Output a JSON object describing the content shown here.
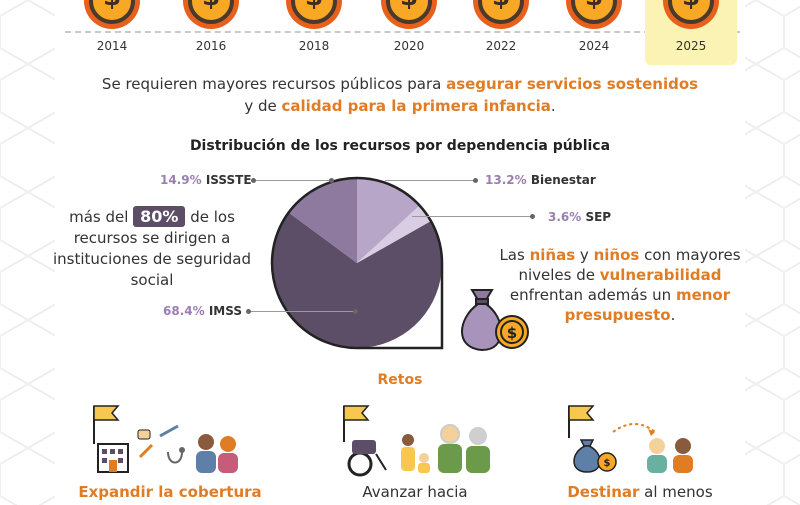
{
  "timeline": {
    "coin_symbol": "$",
    "years": [
      "2014",
      "2016",
      "2018",
      "2020",
      "2022",
      "2024",
      "2025"
    ],
    "highlighted_year": "2025"
  },
  "intro": {
    "line1_pre": "Se requieren mayores recursos públicos para ",
    "line1_em": "asegurar servicios sostenidos",
    "line2_pre": "y de ",
    "line2_em": "calidad para la primera infancia",
    "line2_post": "."
  },
  "distribution": {
    "title": "Distribución de los recursos por dependencia pública",
    "slices": [
      {
        "pct": "68.4%",
        "name": "IMSS",
        "value": 68.4,
        "color": "#5d4e68"
      },
      {
        "pct": "14.9%",
        "name": "ISSSTE",
        "value": 14.9,
        "color": "#8d7a9e"
      },
      {
        "pct": "13.2%",
        "name": "Bienestar",
        "value": 13.2,
        "color": "#b8a6c9"
      },
      {
        "pct": "3.6%",
        "name": "SEP",
        "value": 3.6,
        "color": "#d9cde4"
      }
    ]
  },
  "left_note": {
    "pre": "más del ",
    "badge": "80%",
    "post": " de los recursos se dirigen a instituciones de seguridad social"
  },
  "right_note": {
    "p1": "Las ",
    "em1": "niñas",
    "p2": " y ",
    "em2": "niños",
    "p3": " con mayores niveles de ",
    "em3": "vulnerabilidad",
    "p4": " enfrentan además un ",
    "em4": "menor presupuesto",
    "p5": "."
  },
  "retos": {
    "title": "Retos",
    "items": [
      {
        "caption_em": "Expandir la cobertura",
        "caption": ""
      },
      {
        "caption_em": "",
        "caption": "Avanzar hacia"
      },
      {
        "caption_em": "Destinar",
        "caption": " al menos"
      }
    ]
  },
  "colors": {
    "accent_orange": "#e07c24",
    "purple_dark": "#5d4e68",
    "coin_orange": "#e8601c",
    "coin_yellow": "#f9a825",
    "highlight": "#fbf3b4"
  }
}
